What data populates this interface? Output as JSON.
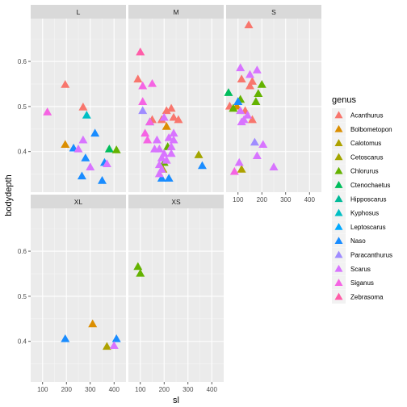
{
  "chart_data": {
    "type": "scatter",
    "xlabel": "sl",
    "ylabel": "bodydepth",
    "xlim": [
      50,
      450
    ],
    "ylim": [
      0.31,
      0.695
    ],
    "x_ticks": [
      100,
      200,
      300,
      400
    ],
    "y_ticks": [
      0.4,
      0.5,
      0.6
    ],
    "grid": true,
    "shape": "triangle",
    "facet_rows": [
      [
        "L",
        "M",
        "S"
      ],
      [
        "XL",
        "XS"
      ]
    ],
    "legend": {
      "title": "genus",
      "position": "right",
      "entries": [
        {
          "name": "Acanthurus",
          "color": "#F8766D"
        },
        {
          "name": "Bolbometopon",
          "color": "#DE8C00"
        },
        {
          "name": "Calotomus",
          "color": "#B79F00"
        },
        {
          "name": "Cetoscarus",
          "color": "#7CAE00"
        },
        {
          "name": "Chlorurus",
          "color": "#00BA38"
        },
        {
          "name": "Ctenochaetus",
          "color": "#00C08B"
        },
        {
          "name": "Hipposcarus",
          "color": "#00BFC4"
        },
        {
          "name": "Kyphosus",
          "color": "#00B4F0"
        },
        {
          "name": "Leptoscarus",
          "color": "#619CFF"
        },
        {
          "name": "Naso",
          "color": "#C77CFF"
        },
        {
          "name": "Paracanthurus",
          "color": "#F564E3"
        },
        {
          "name": "Scarus",
          "color": "#FF64B0"
        },
        {
          "name": "Siganus",
          "color": "#F8766D"
        },
        {
          "name": "Zebrasoma",
          "color": "#FF5C8A"
        }
      ]
    },
    "series_colors": {
      "Acanthurus": "#F8766D",
      "Bolbometopon": "#DB8E00",
      "Calotomus": "#AEA200",
      "Cetoscarus": "#A3A500",
      "Chlorurus": "#64B200",
      "Ctenochaetus": "#00BD5C",
      "Hipposcarus": "#00BA98",
      "Kyphosus": "#00BFC4",
      "Leptoscarus": "#00A9FF",
      "Naso": "#198CFF",
      "Paracanthurus": "#9F8CFF",
      "Scarus": "#D874FF",
      "Siganus": "#F564E3",
      "Zebrasoma": "#FF5DA8"
    },
    "panels": [
      {
        "label": "L",
        "points": [
          {
            "genus": "Acanthurus",
            "x": 195,
            "y": 0.548
          },
          {
            "genus": "Acanthurus",
            "x": 270,
            "y": 0.498
          },
          {
            "genus": "Bolbometopon",
            "x": 195,
            "y": 0.415
          },
          {
            "genus": "Kyphosus",
            "x": 285,
            "y": 0.48
          },
          {
            "genus": "Naso",
            "x": 230,
            "y": 0.407
          },
          {
            "genus": "Naso",
            "x": 320,
            "y": 0.44
          },
          {
            "genus": "Naso",
            "x": 280,
            "y": 0.385
          },
          {
            "genus": "Naso",
            "x": 265,
            "y": 0.345
          },
          {
            "genus": "Naso",
            "x": 360,
            "y": 0.375
          },
          {
            "genus": "Naso",
            "x": 350,
            "y": 0.335
          },
          {
            "genus": "Ctenochaetus",
            "x": 380,
            "y": 0.405
          },
          {
            "genus": "Chlorurus",
            "x": 410,
            "y": 0.403
          },
          {
            "genus": "Scarus",
            "x": 270,
            "y": 0.425
          },
          {
            "genus": "Scarus",
            "x": 250,
            "y": 0.405
          },
          {
            "genus": "Scarus",
            "x": 300,
            "y": 0.365
          },
          {
            "genus": "Scarus",
            "x": 370,
            "y": 0.372
          },
          {
            "genus": "Siganus",
            "x": 120,
            "y": 0.487
          }
        ]
      },
      {
        "label": "M",
        "points": [
          {
            "genus": "Zebrasoma",
            "x": 100,
            "y": 0.62
          },
          {
            "genus": "Acanthurus",
            "x": 90,
            "y": 0.56
          },
          {
            "genus": "Acanthurus",
            "x": 190,
            "y": 0.47
          },
          {
            "genus": "Acanthurus",
            "x": 210,
            "y": 0.49
          },
          {
            "genus": "Acanthurus",
            "x": 230,
            "y": 0.495
          },
          {
            "genus": "Acanthurus",
            "x": 240,
            "y": 0.475
          },
          {
            "genus": "Acanthurus",
            "x": 260,
            "y": 0.47
          },
          {
            "genus": "Acanthurus",
            "x": 150,
            "y": 0.47
          },
          {
            "genus": "Bolbometopon",
            "x": 210,
            "y": 0.455
          },
          {
            "genus": "Cetoscarus",
            "x": 345,
            "y": 0.392
          },
          {
            "genus": "Calotomus",
            "x": 195,
            "y": 0.36
          },
          {
            "genus": "Chlorurus",
            "x": 200,
            "y": 0.375
          },
          {
            "genus": "Chlorurus",
            "x": 215,
            "y": 0.41
          },
          {
            "genus": "Naso",
            "x": 140,
            "y": 0.465
          },
          {
            "genus": "Naso",
            "x": 190,
            "y": 0.34
          },
          {
            "genus": "Naso",
            "x": 220,
            "y": 0.34
          },
          {
            "genus": "Naso",
            "x": 360,
            "y": 0.368
          },
          {
            "genus": "Paracanthurus",
            "x": 110,
            "y": 0.49
          },
          {
            "genus": "Siganus",
            "x": 110,
            "y": 0.545
          },
          {
            "genus": "Siganus",
            "x": 150,
            "y": 0.55
          },
          {
            "genus": "Siganus",
            "x": 110,
            "y": 0.51
          },
          {
            "genus": "Siganus",
            "x": 120,
            "y": 0.44
          },
          {
            "genus": "Siganus",
            "x": 130,
            "y": 0.425
          },
          {
            "genus": "Siganus",
            "x": 140,
            "y": 0.465
          },
          {
            "genus": "Scarus",
            "x": 160,
            "y": 0.405
          },
          {
            "genus": "Scarus",
            "x": 170,
            "y": 0.425
          },
          {
            "genus": "Scarus",
            "x": 180,
            "y": 0.405
          },
          {
            "genus": "Scarus",
            "x": 190,
            "y": 0.385
          },
          {
            "genus": "Scarus",
            "x": 200,
            "y": 0.395
          },
          {
            "genus": "Scarus",
            "x": 180,
            "y": 0.37
          },
          {
            "genus": "Scarus",
            "x": 190,
            "y": 0.36
          },
          {
            "genus": "Scarus",
            "x": 240,
            "y": 0.44
          },
          {
            "genus": "Scarus",
            "x": 240,
            "y": 0.425
          },
          {
            "genus": "Scarus",
            "x": 230,
            "y": 0.41
          },
          {
            "genus": "Scarus",
            "x": 230,
            "y": 0.395
          },
          {
            "genus": "Scarus",
            "x": 210,
            "y": 0.38
          },
          {
            "genus": "Scarus",
            "x": 180,
            "y": 0.35
          },
          {
            "genus": "Scarus",
            "x": 200,
            "y": 0.475
          },
          {
            "genus": "Scarus",
            "x": 220,
            "y": 0.43
          }
        ]
      },
      {
        "label": "S",
        "points": [
          {
            "genus": "Acanthurus",
            "x": 145,
            "y": 0.68
          },
          {
            "genus": "Acanthurus",
            "x": 115,
            "y": 0.56
          },
          {
            "genus": "Acanthurus",
            "x": 150,
            "y": 0.545
          },
          {
            "genus": "Acanthurus",
            "x": 160,
            "y": 0.555
          },
          {
            "genus": "Acanthurus",
            "x": 65,
            "y": 0.5
          },
          {
            "genus": "Acanthurus",
            "x": 130,
            "y": 0.49
          },
          {
            "genus": "Acanthurus",
            "x": 160,
            "y": 0.47
          },
          {
            "genus": "Bolbometopon",
            "x": 95,
            "y": 0.5
          },
          {
            "genus": "Calotomus",
            "x": 115,
            "y": 0.36
          },
          {
            "genus": "Chlorurus",
            "x": 200,
            "y": 0.548
          },
          {
            "genus": "Chlorurus",
            "x": 175,
            "y": 0.51
          },
          {
            "genus": "Chlorurus",
            "x": 185,
            "y": 0.528
          },
          {
            "genus": "Chlorurus",
            "x": 80,
            "y": 0.495
          },
          {
            "genus": "Chlorurus",
            "x": 110,
            "y": 0.515
          },
          {
            "genus": "Ctenochaetus",
            "x": 60,
            "y": 0.53
          },
          {
            "genus": "Naso",
            "x": 100,
            "y": 0.51
          },
          {
            "genus": "Paracanthurus",
            "x": 170,
            "y": 0.42
          },
          {
            "genus": "Scarus",
            "x": 110,
            "y": 0.585
          },
          {
            "genus": "Scarus",
            "x": 180,
            "y": 0.58
          },
          {
            "genus": "Scarus",
            "x": 150,
            "y": 0.57
          },
          {
            "genus": "Scarus",
            "x": 110,
            "y": 0.49
          },
          {
            "genus": "Scarus",
            "x": 125,
            "y": 0.47
          },
          {
            "genus": "Scarus",
            "x": 140,
            "y": 0.48
          },
          {
            "genus": "Scarus",
            "x": 115,
            "y": 0.465
          },
          {
            "genus": "Scarus",
            "x": 205,
            "y": 0.415
          },
          {
            "genus": "Scarus",
            "x": 180,
            "y": 0.39
          },
          {
            "genus": "Scarus",
            "x": 105,
            "y": 0.375
          },
          {
            "genus": "Scarus",
            "x": 250,
            "y": 0.365
          },
          {
            "genus": "Siganus",
            "x": 85,
            "y": 0.355
          }
        ]
      },
      {
        "label": "XL",
        "points": [
          {
            "genus": "Naso",
            "x": 195,
            "y": 0.405
          },
          {
            "genus": "Naso",
            "x": 410,
            "y": 0.405
          },
          {
            "genus": "Bolbometopon",
            "x": 310,
            "y": 0.438
          },
          {
            "genus": "Calotomus",
            "x": 370,
            "y": 0.388
          },
          {
            "genus": "Scarus",
            "x": 400,
            "y": 0.39
          }
        ]
      },
      {
        "label": "XS",
        "points": [
          {
            "genus": "Chlorurus",
            "x": 90,
            "y": 0.565
          },
          {
            "genus": "Chlorurus",
            "x": 100,
            "y": 0.55
          }
        ]
      }
    ]
  }
}
